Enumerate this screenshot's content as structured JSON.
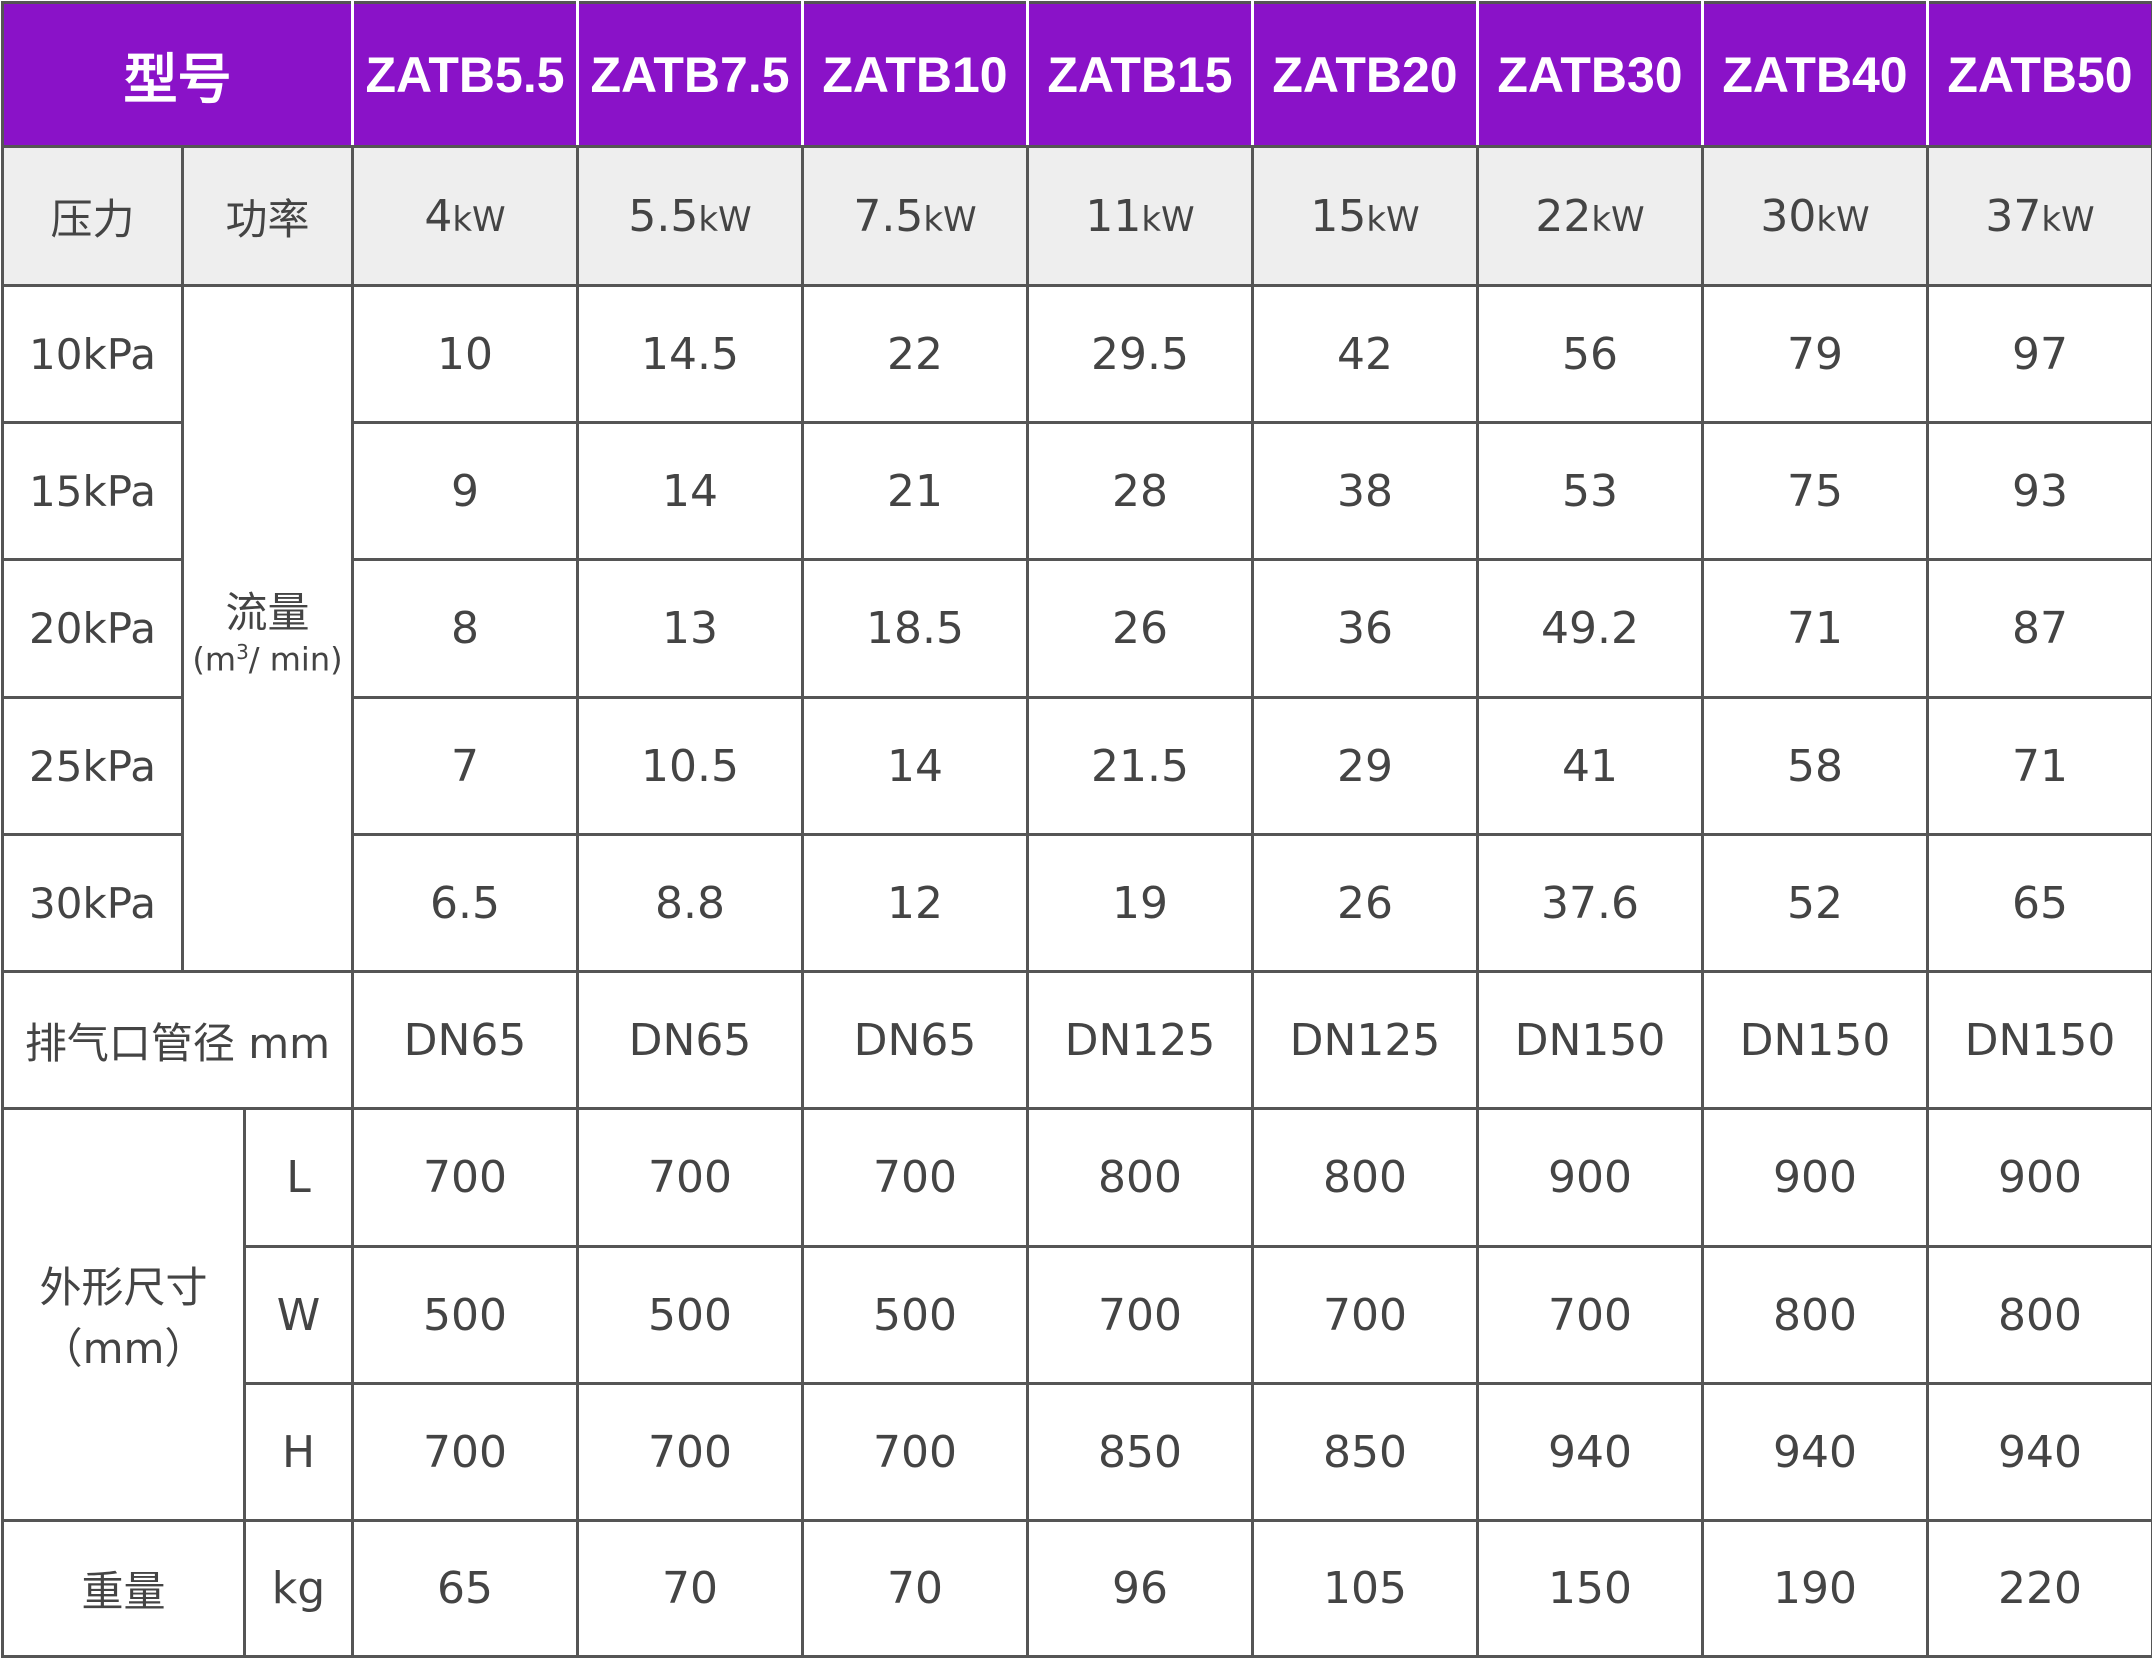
{
  "header": {
    "label": "型号",
    "models": [
      "ZATB5.5",
      "ZATB7.5",
      "ZATB10",
      "ZATB15",
      "ZATB20",
      "ZATB30",
      "ZATB40",
      "ZATB50"
    ]
  },
  "power_row": {
    "pressure_label": "压力",
    "power_label": "功率",
    "unit": "kW",
    "values": [
      "4",
      "5.5",
      "7.5",
      "11",
      "15",
      "22",
      "30",
      "37"
    ]
  },
  "flow": {
    "label": "流量",
    "unit_prefix": "(m",
    "unit_sup": "3",
    "unit_suffix": "/ min)",
    "rows": [
      {
        "pressure": "10kPa",
        "values": [
          "10",
          "14.5",
          "22",
          "29.5",
          "42",
          "56",
          "79",
          "97"
        ]
      },
      {
        "pressure": "15kPa",
        "values": [
          "9",
          "14",
          "21",
          "28",
          "38",
          "53",
          "75",
          "93"
        ]
      },
      {
        "pressure": "20kPa",
        "values": [
          "8",
          "13",
          "18.5",
          "26",
          "36",
          "49.2",
          "71",
          "87"
        ]
      },
      {
        "pressure": "25kPa",
        "values": [
          "7",
          "10.5",
          "14",
          "21.5",
          "29",
          "41",
          "58",
          "71"
        ]
      },
      {
        "pressure": "30kPa",
        "values": [
          "6.5",
          "8.8",
          "12",
          "19",
          "26",
          "37.6",
          "52",
          "65"
        ]
      }
    ]
  },
  "outlet": {
    "label": "排气口管径 mm",
    "values": [
      "DN65",
      "DN65",
      "DN65",
      "DN125",
      "DN125",
      "DN150",
      "DN150",
      "DN150"
    ]
  },
  "dimensions": {
    "label": "外形尺寸",
    "unit": "（mm）",
    "rows": [
      {
        "axis": "L",
        "values": [
          "700",
          "700",
          "700",
          "800",
          "800",
          "900",
          "900",
          "900"
        ]
      },
      {
        "axis": "W",
        "values": [
          "500",
          "500",
          "500",
          "700",
          "700",
          "700",
          "800",
          "800"
        ]
      },
      {
        "axis": "H",
        "values": [
          "700",
          "700",
          "700",
          "850",
          "850",
          "940",
          "940",
          "940"
        ]
      }
    ]
  },
  "weight": {
    "label": "重量",
    "unit": "kg",
    "values": [
      "65",
      "70",
      "70",
      "96",
      "105",
      "150",
      "190",
      "220"
    ]
  },
  "colors": {
    "header_bg": "#8a12c8",
    "header_text": "#ffffff",
    "power_row_bg": "#eeeeee",
    "text": "#444444",
    "border": "#555555"
  }
}
